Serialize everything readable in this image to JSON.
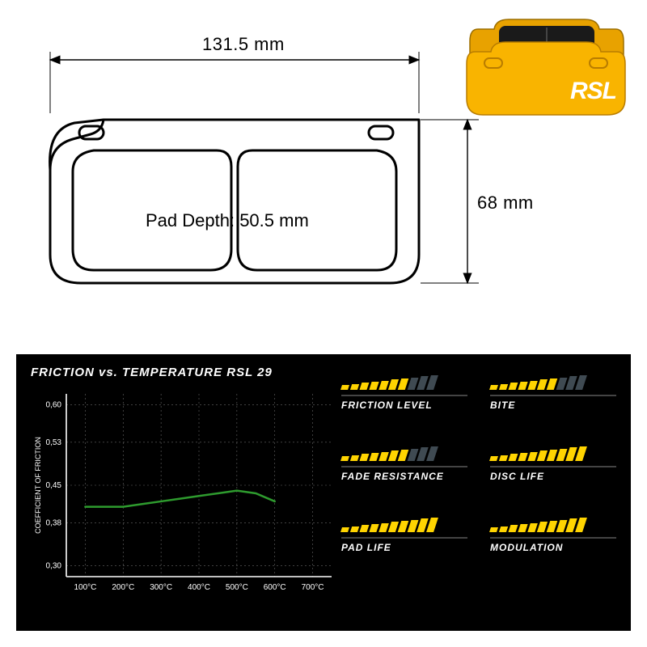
{
  "colors": {
    "bg": "#ffffff",
    "panel": "#000000",
    "line": "#000000",
    "pad_yellow": "#f9b400",
    "pad_dark": "#1a1a1a",
    "chart_axis": "#ffffff",
    "chart_grid": "#666666",
    "chart_line": "#2e9b2e",
    "bar_on": "#ffd400",
    "bar_off": "#3f4a52"
  },
  "tech": {
    "width_label": "131.5 mm",
    "height_label": "68 mm",
    "pad_depth_label": "Pad Depth: 50.5 mm",
    "font_size_dim": 22,
    "stroke_width": 1.5
  },
  "thumb": {
    "brand": "RSL"
  },
  "chart": {
    "title": "FRICTION vs. TEMPERATURE RSL 29",
    "ylabel": "COEFFICIENT OF FRICTION",
    "y_ticks": [
      "0,30",
      "0,38",
      "0,45",
      "0,53",
      "0,60"
    ],
    "y_values": [
      0.3,
      0.38,
      0.45,
      0.53,
      0.6
    ],
    "x_ticks": [
      "100°C",
      "200°C",
      "300°C",
      "400°C",
      "500°C",
      "600°C",
      "700°C"
    ],
    "x_values": [
      100,
      200,
      300,
      400,
      500,
      600,
      700
    ],
    "series": {
      "x": [
        100,
        150,
        200,
        250,
        300,
        350,
        400,
        450,
        500,
        550,
        600
      ],
      "y": [
        0.41,
        0.41,
        0.41,
        0.415,
        0.42,
        0.425,
        0.43,
        0.435,
        0.44,
        0.435,
        0.42
      ]
    },
    "xlim": [
      50,
      750
    ],
    "ylim": [
      0.28,
      0.62
    ],
    "line_width": 2.5,
    "axis_fontsize": 9,
    "tick_fontsize": 10
  },
  "ratings": {
    "max": 10,
    "bar_min_h": 6,
    "bar_max_h": 18,
    "items": [
      {
        "label": "FRICTION LEVEL",
        "value": 7
      },
      {
        "label": "BITE",
        "value": 7
      },
      {
        "label": "FADE RESISTANCE",
        "value": 7
      },
      {
        "label": "DISC LIFE",
        "value": 10
      },
      {
        "label": "PAD LIFE",
        "value": 10
      },
      {
        "label": "MODULATION",
        "value": 10
      }
    ]
  }
}
